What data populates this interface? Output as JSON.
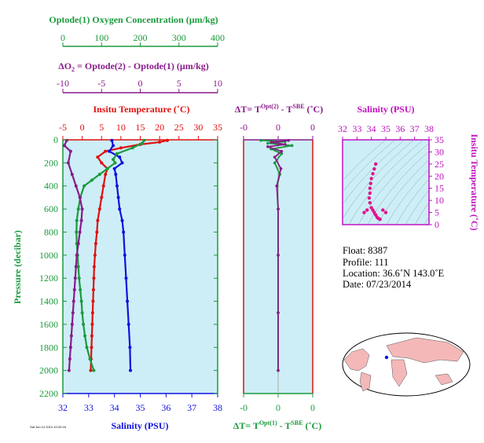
{
  "colors": {
    "green": "#1a9a3c",
    "purple": "#8a1a8a",
    "red": "#e01010",
    "blue": "#1010e0",
    "magenta": "#e0148c",
    "panel_bg": "#cdeef6"
  },
  "labels": {
    "oxygen_title": "Optode(1) Oxygen Concentration (µm/kg)",
    "delta_o2_title_a": "ΔO",
    "delta_o2_title_sub": "2",
    "delta_o2_title_b": " = Optode(2) - Optode(1)   (µm/kg)",
    "temp_title": "Insitu Temperature (˚C)",
    "salinity_bottom": "Salinity (PSU)",
    "pressure": "Pressure (decibar)",
    "dT_top_a": "ΔT= T",
    "dT_top_sup1": "Opt(2)",
    "dT_top_b": " - T",
    "dT_top_sup2": "SBE",
    "dT_top_c": " (˚C)",
    "dT_bot_a": "ΔT= T",
    "dT_bot_sup1": "Opt(1)",
    "dT_bot_b": " - T",
    "dT_bot_sup2": "SBE",
    "dT_bot_c": " (˚C)",
    "ts_salinity": "Salinity (PSU)",
    "ts_temp": "Insitu Temperature (˚C)",
    "tiny_footer": "Sat Jun 14 2014 10:20:18"
  },
  "info": {
    "float": "Float:  8387",
    "profile": "Profile:  111",
    "location": "Location:  36.6˚N  143.0˚E",
    "date": "Date:  07/23/2014"
  },
  "chart_data": [
    {
      "type": "line",
      "name": "main-profile",
      "ylabel": "Pressure (decibar)",
      "ylim": [
        2200,
        0
      ],
      "yticks": [
        0,
        200,
        400,
        600,
        800,
        1000,
        1200,
        1400,
        1600,
        1800,
        2000,
        2200
      ],
      "axes": {
        "oxygen": {
          "lim": [
            0,
            400
          ],
          "ticks": [
            0,
            100,
            200,
            300,
            400
          ]
        },
        "delta_o2": {
          "lim": [
            -10,
            10
          ],
          "ticks": [
            -10,
            -5,
            0,
            5,
            10
          ]
        },
        "temperature": {
          "lim": [
            -5,
            35
          ],
          "ticks": [
            -5,
            0,
            5,
            10,
            15,
            20,
            25,
            30,
            35
          ]
        },
        "salinity": {
          "lim": [
            32,
            38
          ],
          "ticks": [
            32,
            33,
            34,
            35,
            36,
            37,
            38
          ]
        }
      },
      "series": [
        {
          "axis": "temperature",
          "color": "red",
          "points": [
            [
              22,
              5
            ],
            [
              20,
              20
            ],
            [
              15,
              40
            ],
            [
              10,
              70
            ],
            [
              6,
              100
            ],
            [
              4,
              150
            ],
            [
              5,
              200
            ],
            [
              6.5,
              250
            ],
            [
              6,
              300
            ],
            [
              5.5,
              400
            ],
            [
              5,
              500
            ],
            [
              4.5,
              600
            ],
            [
              4,
              700
            ],
            [
              3.8,
              800
            ],
            [
              3.5,
              900
            ],
            [
              3.3,
              1000
            ],
            [
              3.1,
              1100
            ],
            [
              3,
              1200
            ],
            [
              2.9,
              1300
            ],
            [
              2.8,
              1400
            ],
            [
              2.7,
              1500
            ],
            [
              2.6,
              1600
            ],
            [
              2.5,
              1700
            ],
            [
              2.4,
              1800
            ],
            [
              2.3,
              1900
            ],
            [
              2.2,
              2000
            ]
          ]
        },
        {
          "axis": "salinity",
          "color": "blue",
          "points": [
            [
              33.9,
              5
            ],
            [
              33.95,
              50
            ],
            [
              33.8,
              100
            ],
            [
              34.2,
              150
            ],
            [
              34.3,
              200
            ],
            [
              34.0,
              250
            ],
            [
              34.05,
              300
            ],
            [
              34.1,
              400
            ],
            [
              34.15,
              500
            ],
            [
              34.2,
              600
            ],
            [
              34.3,
              700
            ],
            [
              34.35,
              800
            ],
            [
              34.4,
              1000
            ],
            [
              34.45,
              1200
            ],
            [
              34.5,
              1400
            ],
            [
              34.55,
              1600
            ],
            [
              34.6,
              1800
            ],
            [
              34.62,
              2000
            ]
          ]
        },
        {
          "axis": "oxygen",
          "color": "green",
          "points": [
            [
              210,
              5
            ],
            [
              205,
              30
            ],
            [
              180,
              70
            ],
            [
              140,
              120
            ],
            [
              130,
              170
            ],
            [
              135,
              200
            ],
            [
              115,
              250
            ],
            [
              95,
              300
            ],
            [
              75,
              350
            ],
            [
              55,
              400
            ],
            [
              45,
              500
            ],
            [
              40,
              600
            ],
            [
              36,
              700
            ],
            [
              35,
              800
            ],
            [
              36,
              900
            ],
            [
              38,
              1000
            ],
            [
              40,
              1100
            ],
            [
              42,
              1200
            ],
            [
              45,
              1300
            ],
            [
              48,
              1400
            ],
            [
              50,
              1500
            ],
            [
              53,
              1600
            ],
            [
              57,
              1700
            ],
            [
              62,
              1800
            ],
            [
              70,
              1900
            ],
            [
              80,
              2000
            ]
          ]
        },
        {
          "axis": "delta_o2",
          "color": "purple",
          "points": [
            [
              -9.5,
              5
            ],
            [
              -9.8,
              50
            ],
            [
              -9,
              100
            ],
            [
              -9.3,
              200
            ],
            [
              -8.8,
              300
            ],
            [
              -8.3,
              400
            ],
            [
              -7.8,
              500
            ],
            [
              -7.5,
              600
            ],
            [
              -7.6,
              700
            ],
            [
              -7.8,
              800
            ],
            [
              -8,
              900
            ],
            [
              -8.2,
              1000
            ],
            [
              -8.3,
              1100
            ],
            [
              -8.4,
              1200
            ],
            [
              -8.5,
              1300
            ],
            [
              -8.6,
              1400
            ],
            [
              -8.7,
              1500
            ],
            [
              -8.8,
              1600
            ],
            [
              -8.9,
              1700
            ],
            [
              -9,
              1800
            ],
            [
              -9.1,
              1900
            ],
            [
              -9.2,
              2000
            ]
          ]
        }
      ]
    },
    {
      "type": "line",
      "name": "delta-t-profile",
      "xlim": [
        -0.1,
        0.1
      ],
      "xtick_labels": [
        "-0",
        "0",
        "0"
      ],
      "xticks": [
        -0.1,
        0,
        0.1
      ],
      "ylim": [
        2200,
        0
      ],
      "series": [
        {
          "color": "green",
          "points": [
            [
              -0.05,
              5
            ],
            [
              0.02,
              15
            ],
            [
              -0.03,
              30
            ],
            [
              0.04,
              50
            ],
            [
              -0.02,
              80
            ],
            [
              0.01,
              120
            ],
            [
              -0.01,
              200
            ],
            [
              0.005,
              300
            ],
            [
              -0.003,
              400
            ],
            [
              0,
              600
            ],
            [
              0,
              1000
            ],
            [
              0,
              1500
            ],
            [
              0,
              2000
            ]
          ]
        },
        {
          "color": "purple",
          "points": [
            [
              0.03,
              5
            ],
            [
              -0.02,
              20
            ],
            [
              0.02,
              40
            ],
            [
              -0.03,
              60
            ],
            [
              0.01,
              100
            ],
            [
              -0.01,
              150
            ],
            [
              0.008,
              250
            ],
            [
              -0.004,
              400
            ],
            [
              0,
              600
            ],
            [
              0,
              1000
            ],
            [
              0,
              1500
            ],
            [
              0,
              2000
            ]
          ]
        }
      ]
    },
    {
      "type": "scatter",
      "name": "ts-diagram",
      "xlabel": "Salinity (PSU)",
      "ylabel": "Insitu Temperature (˚C)",
      "xlim": [
        32,
        38
      ],
      "xticks": [
        32,
        33,
        34,
        35,
        36,
        37,
        38
      ],
      "ylim": [
        0,
        35
      ],
      "yticks": [
        0,
        5,
        10,
        15,
        20,
        25,
        30,
        35
      ],
      "points": [
        [
          34.3,
          25
        ],
        [
          34.2,
          23
        ],
        [
          34.1,
          21
        ],
        [
          34.0,
          19
        ],
        [
          33.95,
          17
        ],
        [
          33.9,
          15
        ],
        [
          33.9,
          13
        ],
        [
          33.85,
          11
        ],
        [
          33.9,
          9
        ],
        [
          34.0,
          7
        ],
        [
          34.1,
          6
        ],
        [
          34.2,
          5
        ],
        [
          34.3,
          4
        ],
        [
          34.4,
          3
        ],
        [
          34.5,
          2.5
        ],
        [
          34.6,
          2.2
        ],
        [
          33.7,
          6
        ],
        [
          33.5,
          5
        ],
        [
          34.8,
          6
        ],
        [
          35.0,
          5
        ]
      ]
    }
  ]
}
